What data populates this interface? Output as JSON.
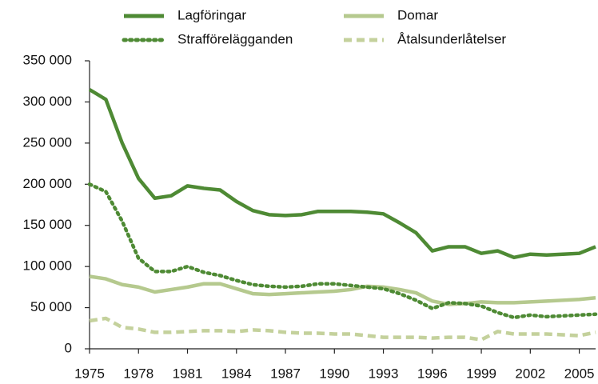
{
  "chart_data": {
    "type": "line",
    "x": [
      1975,
      1976,
      1977,
      1978,
      1979,
      1980,
      1981,
      1982,
      1983,
      1984,
      1985,
      1986,
      1987,
      1988,
      1989,
      1990,
      1991,
      1992,
      1993,
      1994,
      1995,
      1996,
      1997,
      1998,
      1999,
      2000,
      2001,
      2002,
      2003,
      2004,
      2005,
      2006
    ],
    "series": [
      {
        "name": "Lagföringar",
        "color": "#4e8a34",
        "style": "solid",
        "values": [
          315000,
          303000,
          250000,
          207000,
          183000,
          186000,
          198000,
          195000,
          193000,
          179000,
          168000,
          163000,
          162000,
          163000,
          167000,
          167000,
          167000,
          166000,
          164000,
          153000,
          141000,
          119000,
          124000,
          124000,
          116000,
          119000,
          111000,
          115000,
          114000,
          115000,
          116000,
          124000
        ]
      },
      {
        "name": "Domar",
        "color": "#b5c98e",
        "style": "solid",
        "values": [
          88000,
          85000,
          78000,
          75000,
          69000,
          72000,
          75000,
          79000,
          79000,
          73000,
          67000,
          66000,
          67000,
          68000,
          69000,
          70000,
          72000,
          76000,
          75000,
          72000,
          68000,
          58000,
          54000,
          55000,
          57000,
          56000,
          56000,
          57000,
          58000,
          59000,
          60000,
          62000
        ]
      },
      {
        "name": "Strafförelägganden",
        "color": "#4e8a34",
        "style": "dotted",
        "values": [
          200000,
          191000,
          155000,
          110000,
          94000,
          94000,
          100000,
          93000,
          89000,
          83000,
          78000,
          76000,
          75000,
          76000,
          79000,
          79000,
          77000,
          75000,
          73000,
          67000,
          59000,
          49000,
          56000,
          55000,
          52000,
          44000,
          38000,
          41000,
          39000,
          40000,
          41000,
          42000
        ]
      },
      {
        "name": "Åtalsunderlåtelser",
        "color": "#c4d19c",
        "style": "dashed",
        "values": [
          34000,
          37000,
          26000,
          24000,
          20000,
          20000,
          21000,
          22000,
          22000,
          21000,
          23000,
          22000,
          20000,
          19000,
          19000,
          18000,
          18000,
          16000,
          14000,
          14000,
          14000,
          13000,
          14000,
          14000,
          11000,
          21000,
          18000,
          18000,
          18000,
          17000,
          16000,
          20000
        ]
      }
    ],
    "xlim": [
      1975,
      2006
    ],
    "xticks": [
      1975,
      1978,
      1981,
      1984,
      1987,
      1990,
      1993,
      1996,
      1999,
      2002,
      2005
    ],
    "ylim": [
      0,
      350000
    ],
    "yticks": [
      0,
      {
        "value": 50000,
        "label": "50 000"
      },
      {
        "value": 100000,
        "label": "100 000"
      },
      {
        "value": 150000,
        "label": "150 000"
      },
      {
        "value": 200000,
        "label": "200 000"
      },
      {
        "value": 250000,
        "label": "250 000"
      },
      {
        "value": 300000,
        "label": "300 000"
      },
      {
        "value": 350000,
        "label": "350 000"
      }
    ],
    "grid": false,
    "legend": "top"
  }
}
